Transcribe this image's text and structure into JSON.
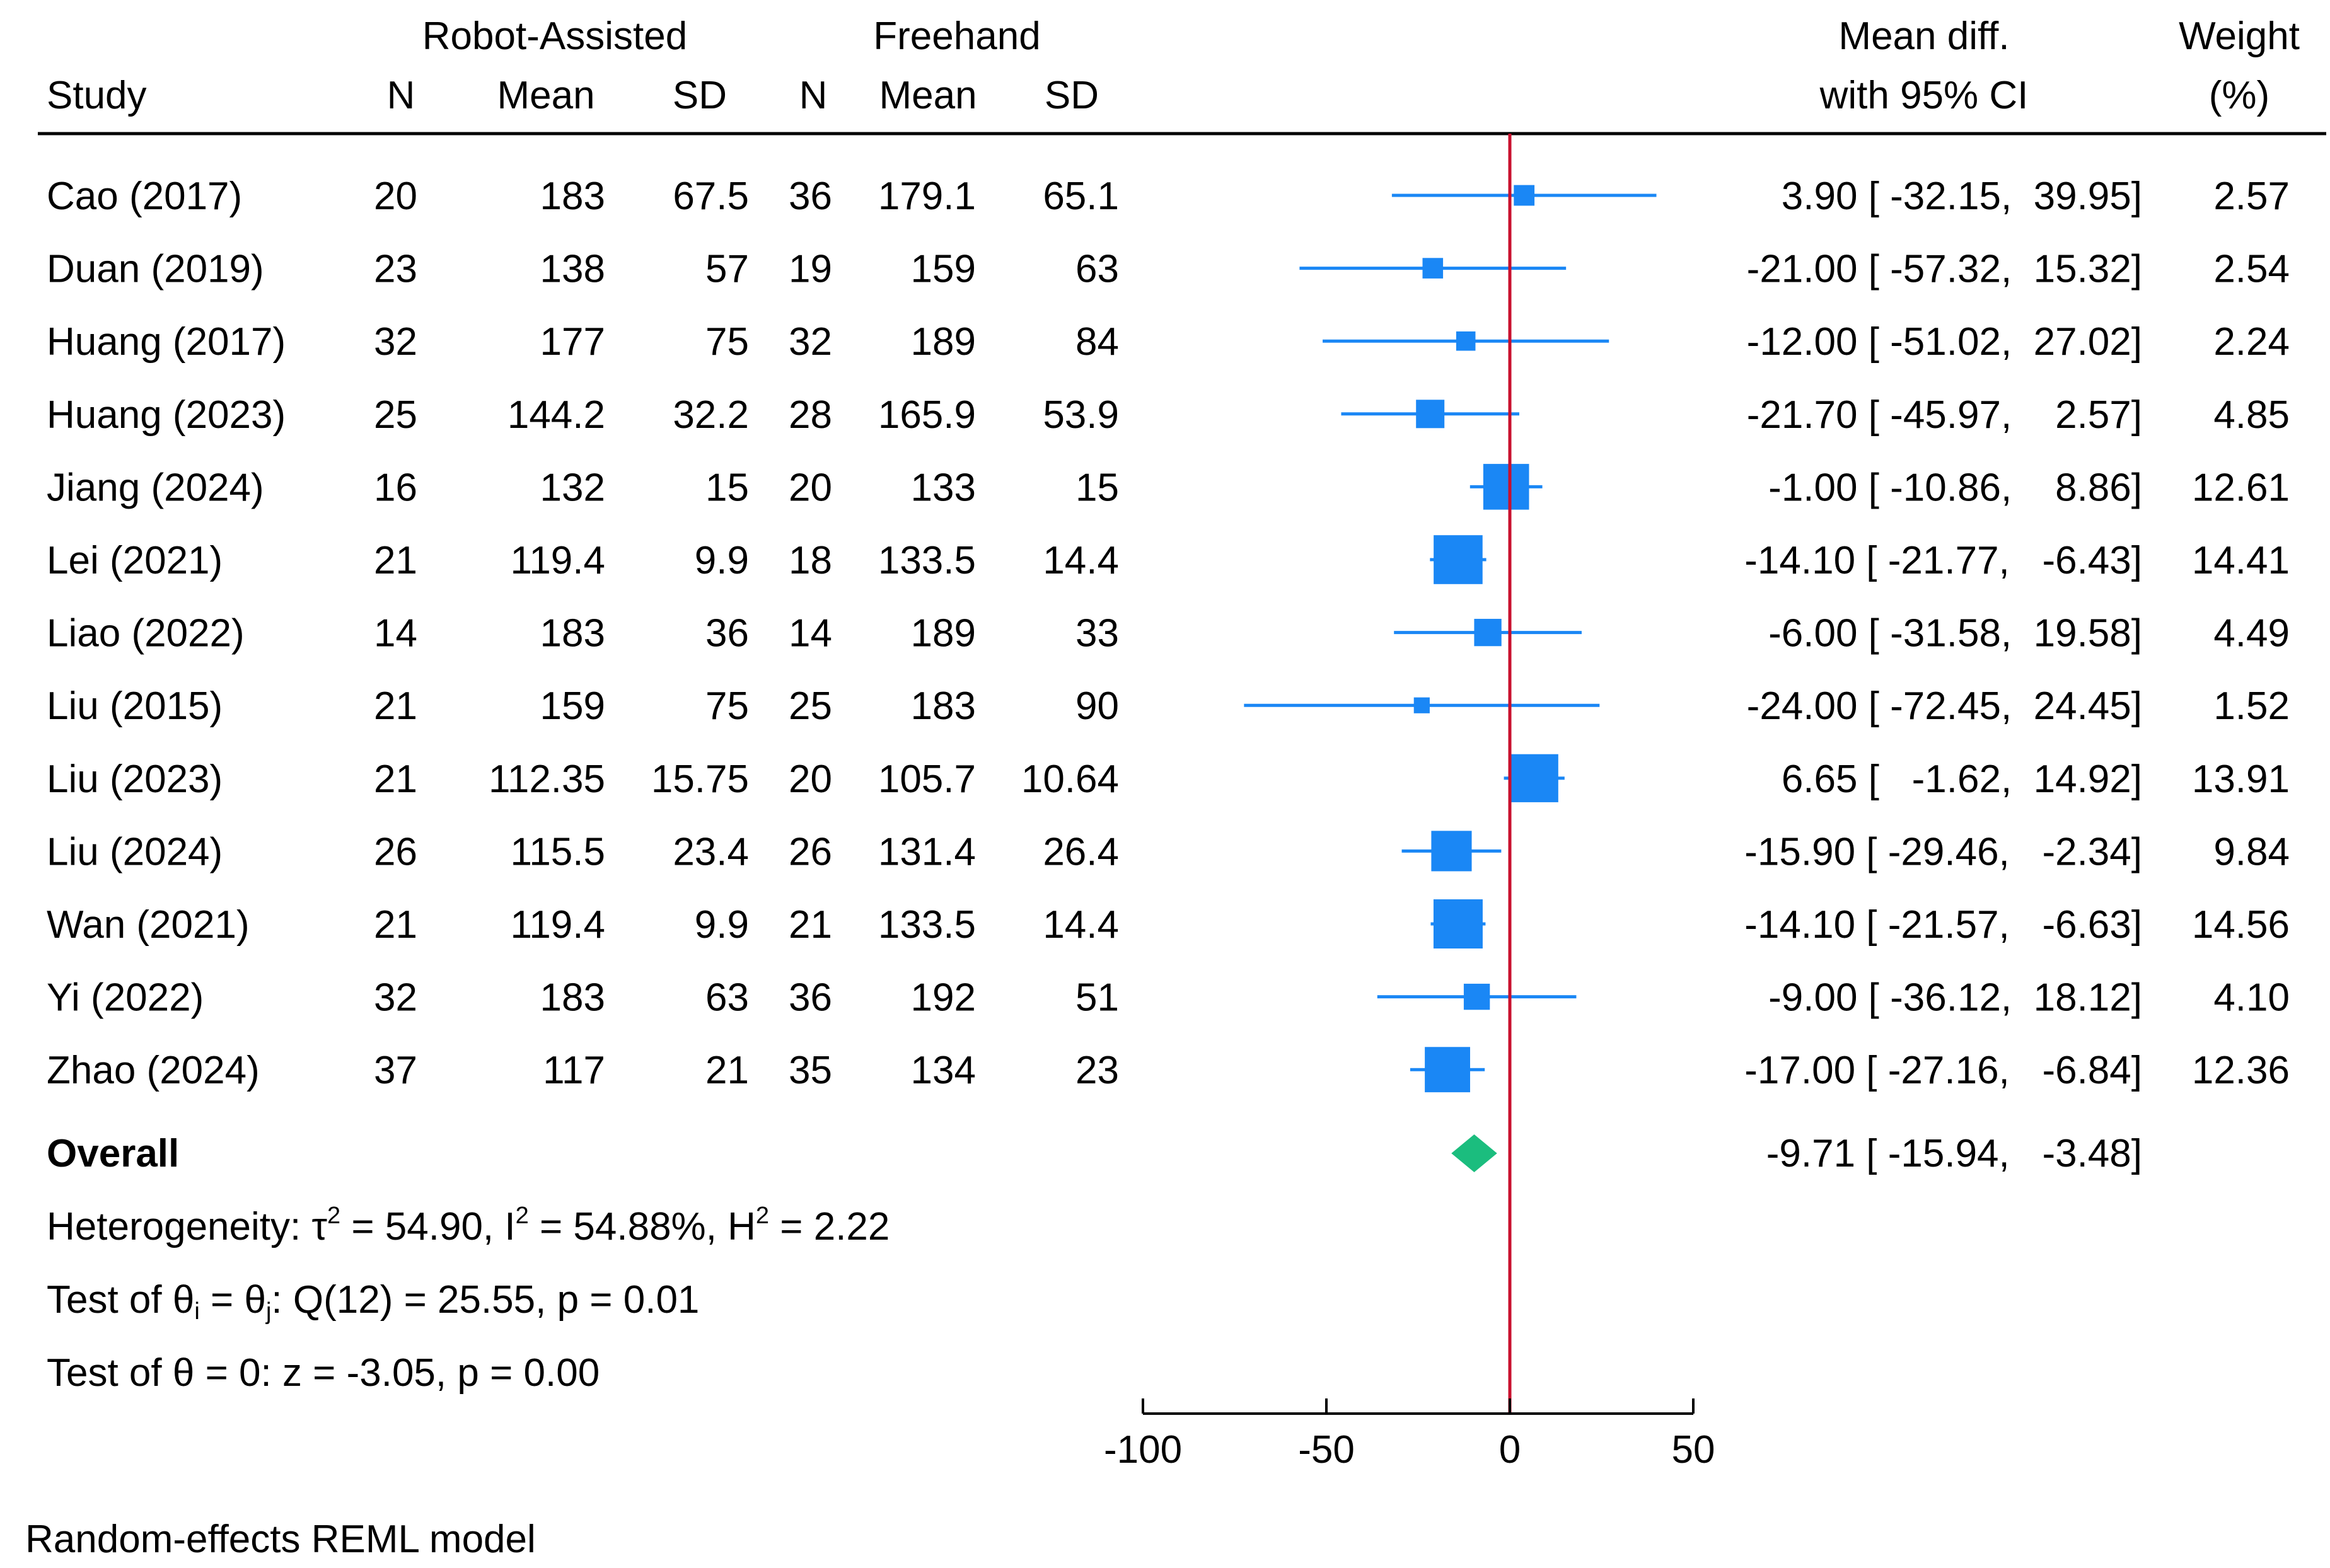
{
  "headers": {
    "group1": "Robot-Assisted",
    "group2": "Freehand",
    "study": "Study",
    "n": "N",
    "mean": "Mean",
    "sd": "SD",
    "effect_line1": "Mean diff.",
    "effect_line2": "with 95% CI",
    "weight_line1": "Weight",
    "weight_line2": "(%)"
  },
  "chart_data": {
    "type": "forest",
    "x_ticks": [
      -100,
      -50,
      0,
      50
    ],
    "tick_labels": [
      "-100",
      "-50",
      "0",
      "50"
    ],
    "xlim": [
      -100,
      50
    ],
    "reference_line": 0,
    "colors": {
      "marker": "#1a87f5",
      "diamond": "#1bbd7e",
      "refline": "#c8102e"
    },
    "studies": [
      {
        "study": "Cao (2017)",
        "n1": "20",
        "mean1": "183",
        "sd1": "67.5",
        "n2": "36",
        "mean2": "179.1",
        "sd2": "65.1",
        "md": 3.9,
        "lo": -32.15,
        "hi": 39.95,
        "ci_text": "3.90 [ -32.15,  39.95]",
        "weight": 2.57,
        "weight_text": "2.57"
      },
      {
        "study": "Duan (2019)",
        "n1": "23",
        "mean1": "138",
        "sd1": "57",
        "n2": "19",
        "mean2": "159",
        "sd2": "63",
        "md": -21.0,
        "lo": -57.32,
        "hi": 15.32,
        "ci_text": "-21.00 [ -57.32,  15.32]",
        "weight": 2.54,
        "weight_text": "2.54"
      },
      {
        "study": "Huang (2017)",
        "n1": "32",
        "mean1": "177",
        "sd1": "75",
        "n2": "32",
        "mean2": "189",
        "sd2": "84",
        "md": -12.0,
        "lo": -51.02,
        "hi": 27.02,
        "ci_text": "-12.00 [ -51.02,  27.02]",
        "weight": 2.24,
        "weight_text": "2.24"
      },
      {
        "study": "Huang (2023)",
        "n1": "25",
        "mean1": "144.2",
        "sd1": "32.2",
        "n2": "28",
        "mean2": "165.9",
        "sd2": "53.9",
        "md": -21.7,
        "lo": -45.97,
        "hi": 2.57,
        "ci_text": "-21.70 [ -45.97,    2.57]",
        "weight": 4.85,
        "weight_text": "4.85"
      },
      {
        "study": "Jiang (2024)",
        "n1": "16",
        "mean1": "132",
        "sd1": "15",
        "n2": "20",
        "mean2": "133",
        "sd2": "15",
        "md": -1.0,
        "lo": -10.86,
        "hi": 8.86,
        "ci_text": "-1.00 [ -10.86,    8.86]",
        "weight": 12.61,
        "weight_text": "12.61"
      },
      {
        "study": "Lei (2021)",
        "n1": "21",
        "mean1": "119.4",
        "sd1": "9.9",
        "n2": "18",
        "mean2": "133.5",
        "sd2": "14.4",
        "md": -14.1,
        "lo": -21.77,
        "hi": -6.43,
        "ci_text": "-14.10 [ -21.77,   -6.43]",
        "weight": 14.41,
        "weight_text": "14.41"
      },
      {
        "study": "Liao (2022)",
        "n1": "14",
        "mean1": "183",
        "sd1": "36",
        "n2": "14",
        "mean2": "189",
        "sd2": "33",
        "md": -6.0,
        "lo": -31.58,
        "hi": 19.58,
        "ci_text": "-6.00 [ -31.58,  19.58]",
        "weight": 4.49,
        "weight_text": "4.49"
      },
      {
        "study": "Liu (2015)",
        "n1": "21",
        "mean1": "159",
        "sd1": "75",
        "n2": "25",
        "mean2": "183",
        "sd2": "90",
        "md": -24.0,
        "lo": -72.45,
        "hi": 24.45,
        "ci_text": "-24.00 [ -72.45,  24.45]",
        "weight": 1.52,
        "weight_text": "1.52"
      },
      {
        "study": "Liu (2023)",
        "n1": "21",
        "mean1": "112.35",
        "sd1": "15.75",
        "n2": "20",
        "mean2": "105.7",
        "sd2": "10.64",
        "md": 6.65,
        "lo": -1.62,
        "hi": 14.92,
        "ci_text": "6.65 [   -1.62,  14.92]",
        "weight": 13.91,
        "weight_text": "13.91"
      },
      {
        "study": "Liu (2024)",
        "n1": "26",
        "mean1": "115.5",
        "sd1": "23.4",
        "n2": "26",
        "mean2": "131.4",
        "sd2": "26.4",
        "md": -15.9,
        "lo": -29.46,
        "hi": -2.34,
        "ci_text": "-15.90 [ -29.46,   -2.34]",
        "weight": 9.84,
        "weight_text": "9.84"
      },
      {
        "study": "Wan (2021)",
        "n1": "21",
        "mean1": "119.4",
        "sd1": "9.9",
        "n2": "21",
        "mean2": "133.5",
        "sd2": "14.4",
        "md": -14.1,
        "lo": -21.57,
        "hi": -6.63,
        "ci_text": "-14.10 [ -21.57,   -6.63]",
        "weight": 14.56,
        "weight_text": "14.56"
      },
      {
        "study": "Yi (2022)",
        "n1": "32",
        "mean1": "183",
        "sd1": "63",
        "n2": "36",
        "mean2": "192",
        "sd2": "51",
        "md": -9.0,
        "lo": -36.12,
        "hi": 18.12,
        "ci_text": "-9.00 [ -36.12,  18.12]",
        "weight": 4.1,
        "weight_text": "4.10"
      },
      {
        "study": "Zhao (2024)",
        "n1": "37",
        "mean1": "117",
        "sd1": "21",
        "n2": "35",
        "mean2": "134",
        "sd2": "23",
        "md": -17.0,
        "lo": -27.16,
        "hi": -6.84,
        "ci_text": "-17.00 [ -27.16,   -6.84]",
        "weight": 12.36,
        "weight_text": "12.36"
      }
    ],
    "overall": {
      "label": "Overall",
      "md": -9.71,
      "lo": -15.94,
      "hi": -3.48,
      "ci_text": "-9.71 [ -15.94,   -3.48]"
    }
  },
  "stats": {
    "heterogeneity": {
      "prefix": "Heterogeneity: ",
      "tau": "τ",
      "tau_value": " = 54.90, I",
      "i2_value": " = 54.88%, H",
      "h2_value": " = 2.22",
      "sup": "2"
    },
    "q_test": {
      "prefix": "Test of θ",
      "sub_i": "i",
      "mid": " = θ",
      "sub_j": "j",
      "rest": ": Q(12) = 25.55, p = 0.01"
    },
    "z_test": "Test of θ = 0: z = -3.05, p = 0.00"
  },
  "footer": "Random-effects REML model"
}
